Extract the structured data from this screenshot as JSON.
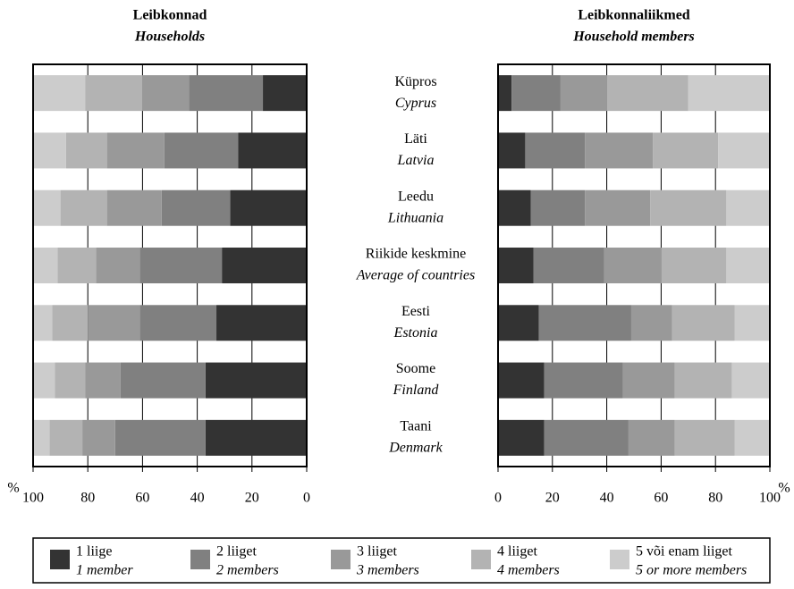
{
  "categories": [
    {
      "et": "Küpros",
      "en": "Cyprus"
    },
    {
      "et": "Läti",
      "en": "Latvia"
    },
    {
      "et": "Leedu",
      "en": "Lithuania"
    },
    {
      "et": "Riikide keskmine",
      "en": "Average of countries"
    },
    {
      "et": "Eesti",
      "en": "Estonia"
    },
    {
      "et": "Soome",
      "en": "Finland"
    },
    {
      "et": "Taani",
      "en": "Denmark"
    }
  ],
  "legend": [
    {
      "name": "1 liige",
      "name_en": "1 member",
      "color": "#333333"
    },
    {
      "name": "2 liiget",
      "name_en": "2 members",
      "color": "#808080"
    },
    {
      "name": "3 liiget",
      "name_en": "3 members",
      "color": "#999999"
    },
    {
      "name": "4 liiget",
      "name_en": "4 members",
      "color": "#b3b3b3"
    },
    {
      "name": "5 või enam liiget",
      "name_en": "5 or more members",
      "color": "#cccccc"
    }
  ],
  "chart_data": [
    {
      "type": "bar",
      "orientation": "horizontal",
      "stacked": true,
      "title": "Leibkonnad",
      "subtitle": "Households",
      "x_unit": "%",
      "xlim": [
        100,
        0
      ],
      "xticks": [
        100,
        80,
        60,
        40,
        20,
        0
      ],
      "grid": true,
      "series": [
        {
          "values": [
            16,
            25,
            28,
            31,
            33,
            37,
            37
          ]
        },
        {
          "values": [
            27,
            27,
            25,
            30,
            28,
            31,
            33
          ]
        },
        {
          "values": [
            17,
            21,
            20,
            16,
            19,
            13,
            12
          ]
        },
        {
          "values": [
            21,
            15,
            17,
            14,
            13,
            11,
            12
          ]
        },
        {
          "values": [
            19,
            12,
            10,
            9,
            7,
            8,
            6
          ]
        }
      ]
    },
    {
      "type": "bar",
      "orientation": "horizontal",
      "stacked": true,
      "title": "Leibkonnaliikmed",
      "subtitle": "Household members",
      "x_unit": "%",
      "xlim": [
        0,
        100
      ],
      "xticks": [
        0,
        20,
        40,
        60,
        80,
        100
      ],
      "grid": true,
      "series": [
        {
          "values": [
            5,
            10,
            12,
            13,
            15,
            17,
            17
          ]
        },
        {
          "values": [
            18,
            22,
            20,
            26,
            34,
            29,
            31
          ]
        },
        {
          "values": [
            17,
            25,
            24,
            21,
            15,
            19,
            17
          ]
        },
        {
          "values": [
            30,
            24,
            28,
            24,
            23,
            21,
            22
          ]
        },
        {
          "values": [
            30,
            19,
            16,
            16,
            13,
            14,
            13
          ]
        }
      ]
    }
  ]
}
